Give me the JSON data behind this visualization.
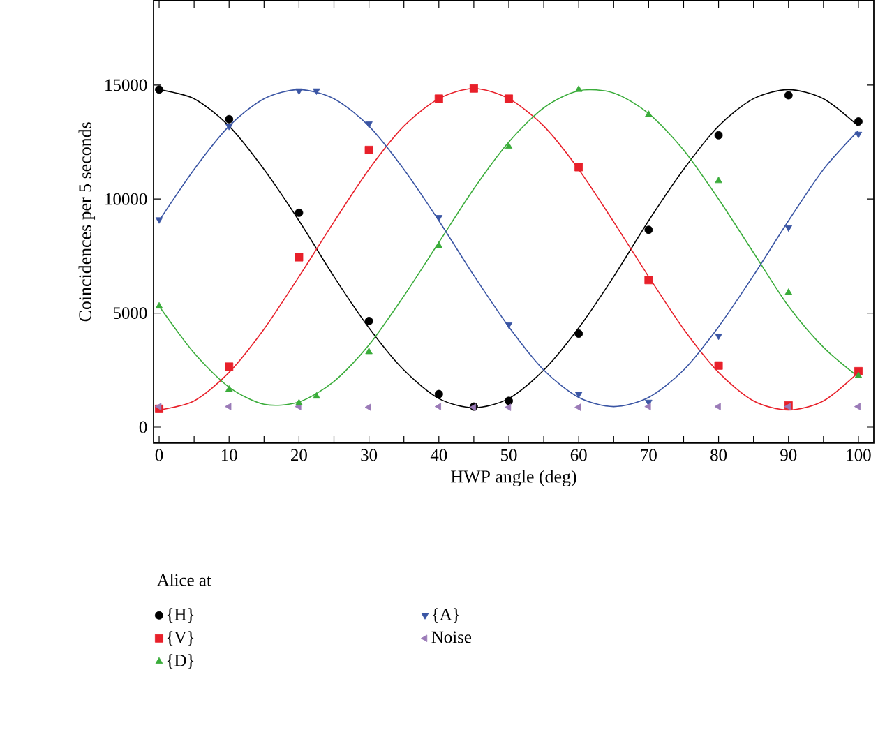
{
  "chart_data": {
    "type": "scatter",
    "xlabel": "HWP angle (deg)",
    "ylabel": "Coincidences per 5 seconds",
    "legend_title": "Alice at",
    "xlim": [
      -0.8,
      102.2
    ],
    "ylim": [
      -700,
      18700
    ],
    "xticks": [
      0,
      {
        "value": 5,
        "label": null
      },
      10,
      {
        "value": 15,
        "label": null
      },
      20,
      {
        "value": 25,
        "label": null
      },
      30,
      {
        "value": 35,
        "label": null
      },
      40,
      {
        "value": 45,
        "label": null
      },
      50,
      {
        "value": 55,
        "label": null
      },
      60,
      {
        "value": 65,
        "label": null
      },
      70,
      {
        "value": 75,
        "label": null
      },
      80,
      {
        "value": 85,
        "label": null
      },
      90,
      {
        "value": 95,
        "label": null
      },
      100
    ],
    "yticks": [
      0,
      5000,
      10000,
      15000
    ],
    "grid": false,
    "legend": "bottom",
    "series": [
      {
        "name": "{H}",
        "color": "#000000",
        "marker": "circle",
        "x": [
          0,
          10,
          20,
          30,
          40,
          45,
          50,
          60,
          70,
          80,
          90,
          100
        ],
        "values": [
          14800,
          13500,
          9400,
          4650,
          1450,
          900,
          1150,
          4100,
          8650,
          12800,
          14550,
          13400
        ]
      },
      {
        "name": "{V}",
        "color": "#e8202a",
        "marker": "square",
        "x": [
          0,
          10,
          20,
          30,
          40,
          45,
          50,
          60,
          70,
          80,
          90,
          100
        ],
        "values": [
          800,
          2650,
          7450,
          12150,
          14400,
          14850,
          14400,
          11400,
          6450,
          2700,
          950,
          2450
        ]
      },
      {
        "name": "{D}",
        "color": "#3aac3a",
        "marker": "triangle",
        "x": [
          0,
          10,
          20,
          22.5,
          30,
          40,
          50,
          60,
          70,
          80,
          90,
          100
        ],
        "values": [
          5300,
          1650,
          1050,
          1350,
          3300,
          7950,
          12300,
          14800,
          13700,
          10800,
          5900,
          2250
        ]
      },
      {
        "name": "{A}",
        "color": "#3a55a4",
        "marker": "triangle-down",
        "x": [
          0,
          10,
          20,
          22.5,
          30,
          40,
          50,
          60,
          70,
          80,
          90,
          100
        ],
        "values": [
          9100,
          13200,
          14750,
          14750,
          13300,
          9200,
          4500,
          1450,
          1100,
          4000,
          8750,
          12850
        ]
      },
      {
        "name": "Noise",
        "color": "#9b7bb8",
        "marker": "triangle-left",
        "x": [
          0,
          10,
          20,
          30,
          40,
          45,
          50,
          60,
          70,
          80,
          90,
          100
        ],
        "values": [
          900,
          900,
          900,
          870,
          900,
          870,
          870,
          870,
          900,
          900,
          900,
          900
        ]
      },
      {
        "type": "line",
        "color": "#000000",
        "marker": "none",
        "x": [
          0,
          5,
          10,
          15,
          20,
          25,
          30,
          35,
          40,
          45,
          50,
          55,
          60,
          65,
          70,
          75,
          80,
          85,
          90,
          95,
          100
        ],
        "values": [
          14800,
          14400,
          13200,
          11300,
          9050,
          6600,
          4350,
          2500,
          1250,
          850,
          1250,
          2500,
          4350,
          6600,
          9050,
          11300,
          13200,
          14400,
          14800,
          14400,
          13200
        ]
      },
      {
        "type": "line",
        "color": "#e8202a",
        "marker": "none",
        "x": [
          0,
          5,
          10,
          15,
          20,
          25,
          30,
          35,
          40,
          45,
          50,
          55,
          60,
          65,
          70,
          75,
          80,
          85,
          90,
          95,
          100
        ],
        "values": [
          750,
          1150,
          2400,
          4300,
          6600,
          9000,
          11300,
          13200,
          14400,
          14850,
          14400,
          13200,
          11300,
          9000,
          6600,
          4300,
          2400,
          1150,
          750,
          1150,
          2400
        ]
      },
      {
        "type": "line",
        "color": "#3aac3a",
        "marker": "none",
        "x": [
          0,
          5,
          10,
          15,
          20,
          25,
          30,
          35,
          40,
          45,
          50,
          55,
          60,
          65,
          70,
          75,
          80,
          85,
          90,
          95,
          100
        ],
        "values": [
          5300,
          3250,
          1750,
          1000,
          1100,
          2000,
          3600,
          5750,
          8100,
          10450,
          12500,
          14000,
          14750,
          14650,
          13750,
          12150,
          10000,
          7650,
          5300,
          3500,
          2200
        ]
      },
      {
        "type": "line",
        "color": "#3a55a4",
        "marker": "none",
        "x": [
          0,
          5,
          10,
          15,
          20,
          25,
          30,
          35,
          40,
          45,
          50,
          55,
          60,
          65,
          70,
          75,
          80,
          85,
          90,
          95,
          100
        ],
        "values": [
          9050,
          11300,
          13200,
          14400,
          14800,
          14400,
          13200,
          11300,
          9050,
          6650,
          4400,
          2500,
          1300,
          900,
          1300,
          2500,
          4400,
          6650,
          9050,
          11300,
          13000
        ]
      }
    ]
  }
}
